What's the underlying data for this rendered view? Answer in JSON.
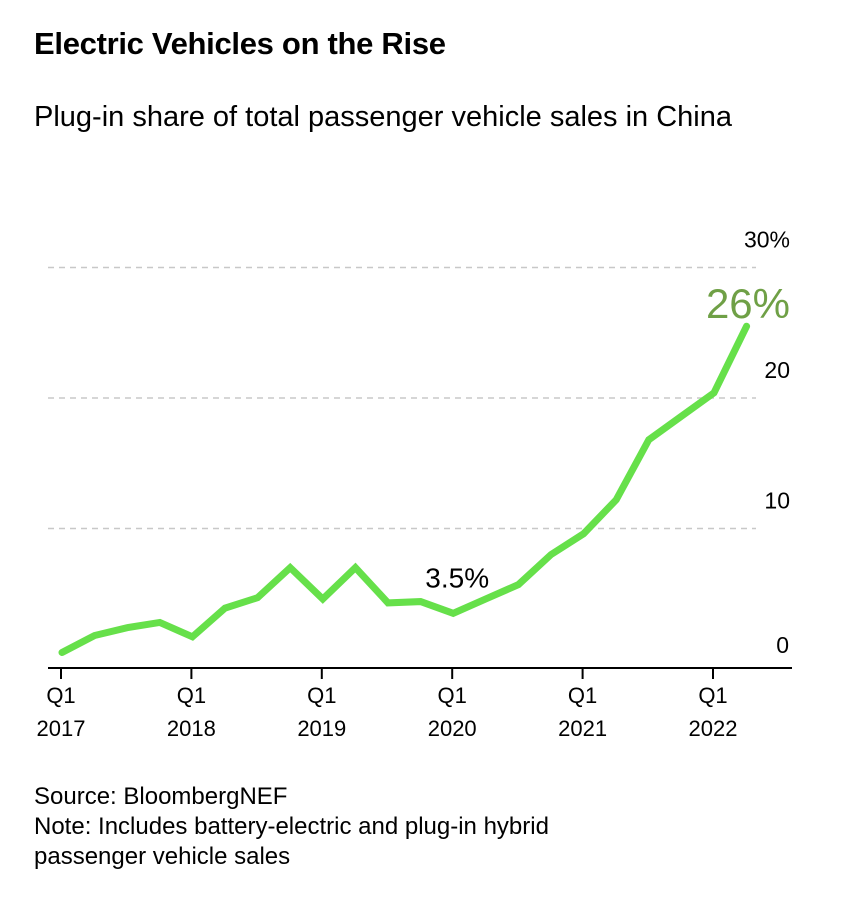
{
  "chart_data": {
    "type": "line",
    "title": "Electric Vehicles on the Rise",
    "subtitle": "Plug-in share of total passenger vehicle sales in China",
    "xlabel": "",
    "ylabel": "",
    "ylim": [
      0,
      30
    ],
    "y_ticks": [
      {
        "value": 30,
        "label": "30%"
      },
      {
        "value": 20,
        "label": "20"
      },
      {
        "value": 10,
        "label": "10"
      },
      {
        "value": 0,
        "label": "0"
      }
    ],
    "x_ticks": [
      {
        "index": 0,
        "line1": "Q1",
        "line2": "2017"
      },
      {
        "index": 4,
        "line1": "Q1",
        "line2": "2018"
      },
      {
        "index": 8,
        "line1": "Q1",
        "line2": "2019"
      },
      {
        "index": 12,
        "line1": "Q1",
        "line2": "2020"
      },
      {
        "index": 16,
        "line1": "Q1",
        "line2": "2021"
      },
      {
        "index": 20,
        "line1": "Q1",
        "line2": "2022"
      }
    ],
    "series": [
      {
        "name": "Plug-in share",
        "color": "#66e04a",
        "values": [
          0.5,
          1.8,
          2.4,
          2.8,
          1.7,
          3.9,
          4.7,
          7.0,
          4.6,
          7.0,
          4.3,
          4.4,
          3.5,
          4.6,
          5.7,
          8.0,
          9.6,
          12.2,
          16.8,
          18.6,
          20.4,
          25.5
        ]
      }
    ],
    "annotations": [
      {
        "index": 21,
        "text": "26%",
        "color": "#6fa046"
      },
      {
        "index": 12,
        "text": "3.5%",
        "color": "#000000"
      }
    ]
  },
  "source": "Source: BloombergNEF",
  "note_line1": "Note: Includes battery-electric and plug-in hybrid",
  "note_line2": "passenger vehicle sales"
}
